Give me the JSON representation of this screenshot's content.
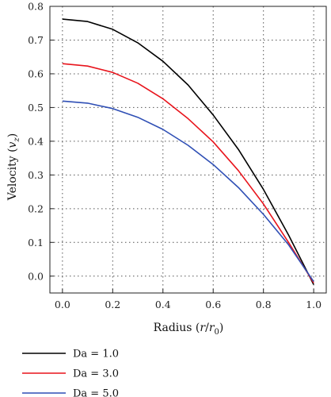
{
  "chart_data": {
    "type": "line",
    "xlabel": "Radius (r/r0)",
    "ylabel": "Velocity (vz)",
    "xlabel_parts": {
      "prefix": "Radius (",
      "var": "r",
      "sep": "/",
      "base": "r",
      "sub": "0",
      "suffix": ")"
    },
    "ylabel_parts": {
      "prefix": "Velocity (",
      "var": "v",
      "sub": "z",
      "suffix": ")"
    },
    "xlim": [
      -0.05,
      1.05
    ],
    "ylim": [
      -0.05,
      0.8
    ],
    "xticks": [
      "0.0",
      "0.2",
      "0.4",
      "0.6",
      "0.8",
      "1.0"
    ],
    "yticks": [
      "0.0",
      "0.1",
      "0.2",
      "0.3",
      "0.4",
      "0.5",
      "0.6",
      "0.7",
      "0.8"
    ],
    "grid": true,
    "legend_position": "bottom",
    "x": [
      0.0,
      0.1,
      0.2,
      0.3,
      0.4,
      0.5,
      0.6,
      0.7,
      0.8,
      0.9,
      1.0
    ],
    "series": [
      {
        "name": "Da = 1.0",
        "color": "#000000",
        "values": [
          0.762,
          0.755,
          0.732,
          0.692,
          0.637,
          0.567,
          0.478,
          0.376,
          0.257,
          0.122,
          -0.025
        ]
      },
      {
        "name": "Da = 3.0",
        "color": "#e8141c",
        "values": [
          0.63,
          0.623,
          0.604,
          0.572,
          0.526,
          0.467,
          0.398,
          0.313,
          0.214,
          0.1,
          -0.02
        ]
      },
      {
        "name": "Da = 5.0",
        "color": "#2f4fb5",
        "values": [
          0.519,
          0.513,
          0.497,
          0.471,
          0.435,
          0.388,
          0.331,
          0.263,
          0.183,
          0.093,
          -0.016
        ]
      }
    ]
  }
}
